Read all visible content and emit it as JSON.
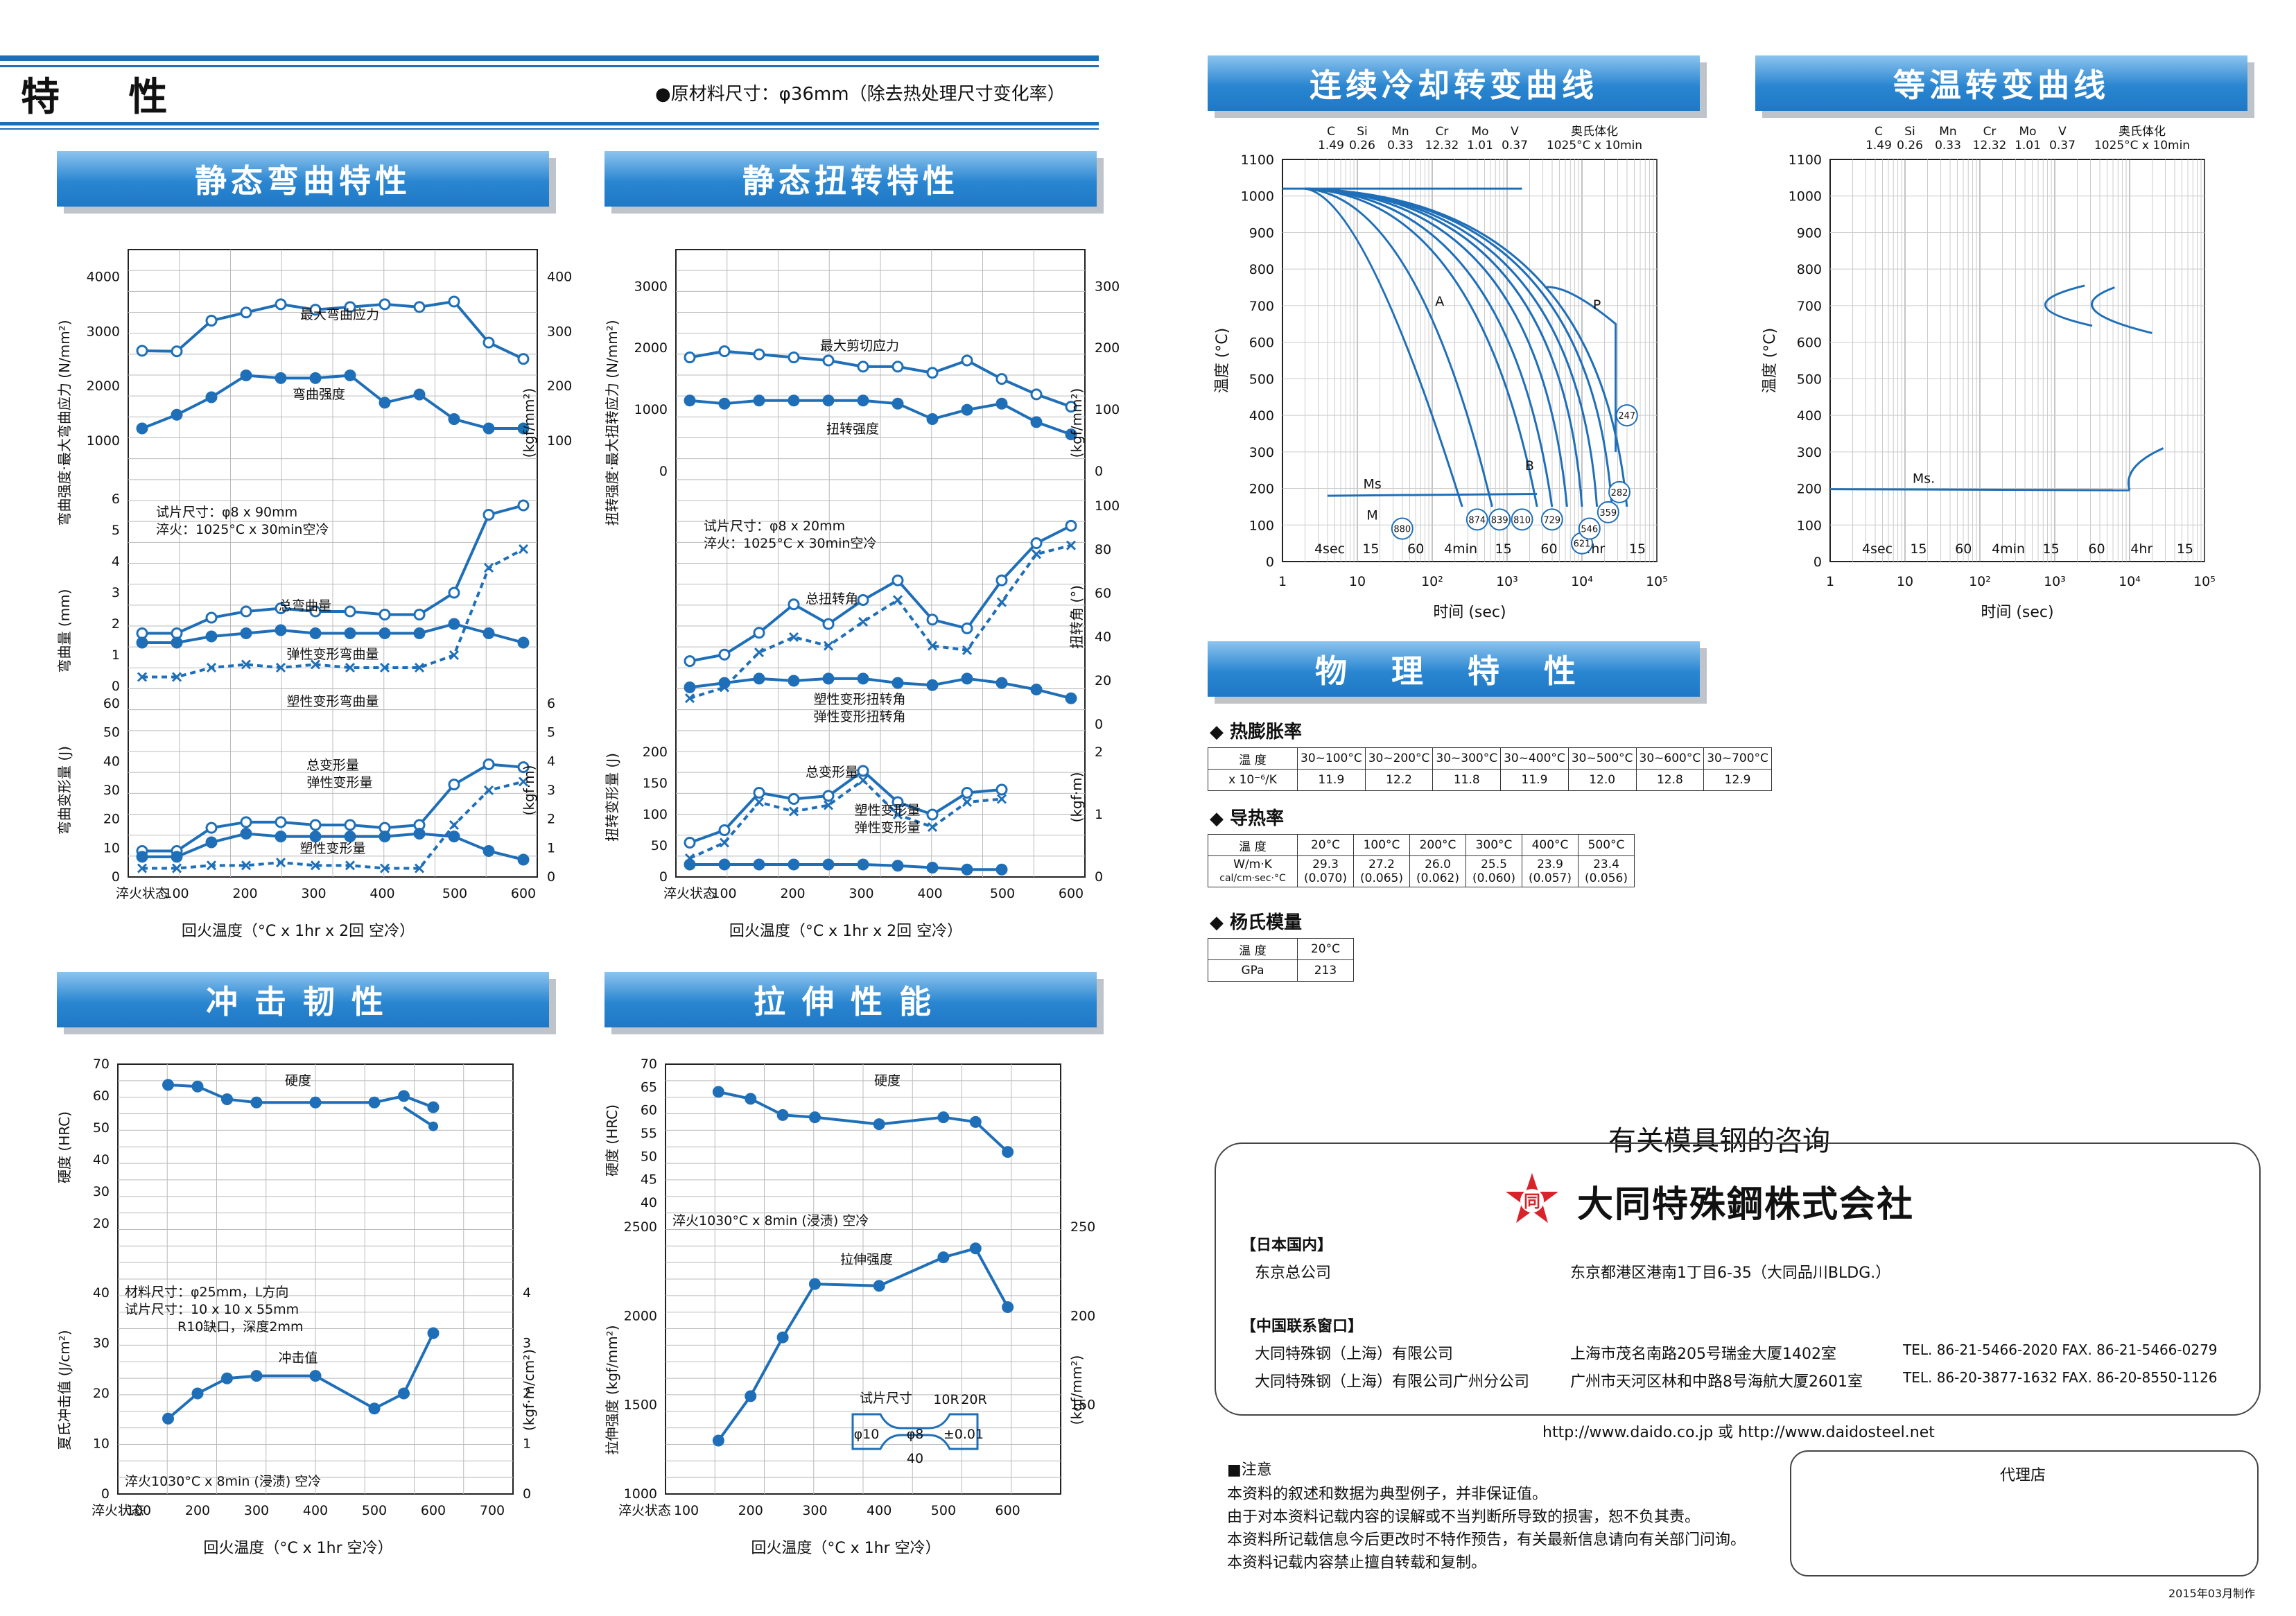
{
  "header": {
    "title": "特 性",
    "note": "●原材料尺寸：φ36mm（除去热处理尺寸变化率）"
  },
  "banners": {
    "bend": "静态弯曲特性",
    "torsion": "静态扭转特性",
    "impact": "冲击韧性",
    "tensile": "拉伸性能",
    "cct": "连续冷却转变曲线",
    "ttt": "等温转变曲线",
    "phys": "物 理 特 性"
  },
  "composition": {
    "headers": [
      "C",
      "Si",
      "Mn",
      "Cr",
      "Mo",
      "V",
      "奥氏体化"
    ],
    "values": [
      "1.49",
      "0.26",
      "0.33",
      "12.32",
      "1.01",
      "0.37",
      "1025°C x 10min"
    ]
  },
  "xtemp": {
    "labels": [
      "淬火状态",
      "100",
      "200",
      "300",
      "400",
      "500",
      "600"
    ],
    "label_ext": [
      "淬火状态",
      "100",
      "200",
      "300",
      "400",
      "500",
      "600",
      "700"
    ],
    "title_2": "回火温度（°C x 1hr x 2回 空冷）",
    "title_1": "回火温度（°C x 1hr 空冷）"
  },
  "bend": {
    "top": {
      "ylabel": "弯曲强度·最大弯曲应力 (N/mm²)",
      "ylabel_r": "(kgf/mm²)",
      "yticks": [
        "4000",
        "3000",
        "2000",
        "1000"
      ],
      "yticks_r": [
        "400",
        "300",
        "200",
        "100"
      ],
      "l1": "最大弯曲应力",
      "l2": "弯曲强度",
      "s1": [
        2650,
        2640,
        3200,
        3350,
        3500,
        3400,
        3450,
        3500,
        3450,
        3550,
        2800,
        2500
      ],
      "s2": [
        1230,
        1480,
        1800,
        2200,
        2150,
        2150,
        2200,
        1700,
        1850,
        1400,
        1230,
        1230
      ]
    },
    "mid": {
      "ylabel": "弯曲量 (mm)",
      "yticks": [
        "6",
        "5",
        "4",
        "3",
        "2",
        "1",
        "0"
      ],
      "note": "试片尺寸：φ8 x 90mm\n淬火：1025°C x 30min空冷",
      "l1": "总弯曲量",
      "l2": "弹性变形弯曲量",
      "l3": "塑性变形弯曲量",
      "s1": [
        1.7,
        1.7,
        2.2,
        2.4,
        2.5,
        2.4,
        2.4,
        2.3,
        2.3,
        3.0,
        5.5,
        5.8
      ],
      "s2": [
        1.4,
        1.4,
        1.6,
        1.7,
        1.8,
        1.7,
        1.7,
        1.7,
        1.7,
        2.0,
        1.7,
        1.4
      ],
      "s3": [
        0.3,
        0.3,
        0.6,
        0.7,
        0.6,
        0.7,
        0.6,
        0.6,
        0.6,
        1.0,
        3.8,
        4.4
      ]
    },
    "bot": {
      "ylabel": "弯曲变形量 (J)",
      "ylabel_r": "(kgf·m)",
      "yticks": [
        "60",
        "50",
        "40",
        "30",
        "20",
        "10",
        "0"
      ],
      "yticks_r": [
        "6",
        "5",
        "4",
        "3",
        "2",
        "1",
        "0"
      ],
      "l1": "总变形量",
      "l2": "弹性变形量",
      "l3": "塑性变形量",
      "s1": [
        9,
        9,
        17,
        19,
        19,
        18,
        18,
        17,
        18,
        32,
        39,
        38
      ],
      "s2": [
        7,
        7,
        12,
        15,
        14,
        14,
        14,
        14,
        15,
        14,
        9,
        6
      ],
      "s3": [
        3,
        3,
        4,
        4,
        5,
        4,
        4,
        3,
        3,
        18,
        30,
        33
      ]
    }
  },
  "torsion": {
    "top": {
      "ylabel": "扭转强度·最大扭转应力 (N/mm²)",
      "ylabel_r": "(kgf/mm²)",
      "yticks": [
        "3000",
        "2000",
        "1000",
        "0"
      ],
      "yticks_r": [
        "300",
        "200",
        "100",
        "0"
      ],
      "l1": "最大剪切应力",
      "l2": "扭转强度",
      "s1": [
        1850,
        1950,
        1900,
        1850,
        1800,
        1700,
        1700,
        1600,
        1800,
        1500,
        1250,
        1050
      ],
      "s2": [
        1150,
        1100,
        1150,
        1150,
        1150,
        1150,
        1100,
        850,
        1000,
        1100,
        800,
        600
      ]
    },
    "mid": {
      "ylabel": "扭转角 (°)",
      "yticks_r": [
        "100",
        "80",
        "60",
        "40",
        "20",
        "0"
      ],
      "note": "试片尺寸：φ8 x 20mm\n淬火：1025°C x 30min空冷",
      "l1": "总扭转角",
      "l2": "塑性变形扭转角",
      "l3": "弹性变形扭转角",
      "s1": [
        29,
        32,
        42,
        55,
        46,
        57,
        66,
        48,
        44,
        66,
        83,
        91
      ],
      "s2": [
        12,
        17,
        33,
        40,
        36,
        47,
        57,
        36,
        34,
        56,
        78,
        82
      ],
      "s3": [
        17,
        19,
        21,
        20,
        21,
        21,
        19,
        18,
        21,
        19,
        16,
        12
      ]
    },
    "bot": {
      "ylabel": "扭转变形量 (J)",
      "ylabel_r": "(kgf·m)",
      "yticks": [
        "200",
        "150",
        "100",
        "50",
        "0"
      ],
      "yticks_r": [
        "2",
        "1",
        "0"
      ],
      "l1": "总变形量",
      "l2": "塑性变形量",
      "l3": "弹性变形量",
      "s1": [
        55,
        75,
        135,
        125,
        130,
        170,
        120,
        100,
        135,
        140
      ],
      "s2": [
        30,
        55,
        120,
        105,
        115,
        155,
        100,
        80,
        120,
        125
      ],
      "s3": [
        20,
        20,
        20,
        20,
        20,
        20,
        18,
        15,
        12,
        12
      ]
    }
  },
  "impact": {
    "top": {
      "ylabel": "硬度 (HRC)",
      "yticks": [
        "70",
        "60",
        "50",
        "40",
        "30",
        "20"
      ],
      "l1": "硬度",
      "s1": [
        63.5,
        63,
        59,
        58,
        58,
        58,
        60,
        56.5,
        50.5
      ]
    },
    "bot": {
      "ylabel": "夏氏冲击值 (J/cm²)",
      "ylabel_r": "(kgf·m/cm²)",
      "yticks": [
        "40",
        "30",
        "20",
        "10",
        "0"
      ],
      "yticks_r": [
        "4",
        "3",
        "2",
        "1",
        "0"
      ],
      "note": "材料尺寸：φ25mm，L方向\n试片尺寸：10 x 10 x 55mm\n　　　　R10缺口，深度2mm",
      "l1": "冲击值",
      "note2": "淬火1030°C x 8min (浸渍) 空冷",
      "s1": [
        15,
        20,
        23,
        23.5,
        23.5,
        17,
        20,
        32
      ]
    }
  },
  "tensile": {
    "top": {
      "ylabel": "硬度 (HRC)",
      "yticks": [
        "70",
        "65",
        "60",
        "55",
        "50",
        "45",
        "40"
      ],
      "l1": "硬度",
      "s1": [
        64,
        62.5,
        59,
        58.5,
        57,
        58.5,
        57.5,
        51
      ]
    },
    "bot": {
      "ylabel": "拉伸强度 (kgf/mm²)",
      "ylabel_r": "(kgf/mm²)",
      "yticks": [
        "2500",
        "2000",
        "1500",
        "1000"
      ],
      "yticks_r": [
        "250",
        "200",
        "150"
      ],
      "note": "淬火1030°C x 8min (浸渍) 空冷",
      "l1": "拉伸强度",
      "s1": [
        1300,
        1550,
        1880,
        2180,
        2170,
        2330,
        2380,
        2050
      ],
      "spec": "试片尺寸",
      "dims": [
        "10R",
        "20R",
        "φ10",
        "φ8",
        "±0.01",
        "40"
      ]
    }
  },
  "cct": {
    "ylabel": "温度 (°C)",
    "xlabel": "时间 (sec)",
    "yticks": [
      "1100",
      "1000",
      "900",
      "800",
      "700",
      "600",
      "500",
      "400",
      "300",
      "200",
      "100",
      "0"
    ],
    "xticks": [
      "1",
      "10",
      "10²",
      "10³",
      "10⁴",
      "10⁵"
    ],
    "times": [
      "4sec",
      "15",
      "60",
      "4min",
      "15",
      "60",
      "4hr",
      "15"
    ],
    "phase": [
      "A",
      "P",
      "B",
      "Ms",
      "M"
    ],
    "hardness": [
      "880",
      "874",
      "839",
      "810",
      "729",
      "621",
      "546",
      "359",
      "282",
      "247"
    ]
  },
  "ttt": {
    "ylabel": "温度 (°C)",
    "xlabel": "时间 (sec)",
    "ms": "Ms."
  },
  "phys": {
    "thermal": {
      "title": "◆ 热膨胀率",
      "label": "温 度",
      "unit": "x 10⁻⁶/K",
      "cols": [
        "30~100°C",
        "30~200°C",
        "30~300°C",
        "30~400°C",
        "30~500°C",
        "30~600°C",
        "30~700°C"
      ],
      "vals": [
        "11.9",
        "12.2",
        "11.8",
        "11.9",
        "12.0",
        "12.8",
        "12.9"
      ]
    },
    "conduct": {
      "title": "◆ 导热率",
      "label": "温 度",
      "unit1": "W/m·K",
      "unit2": "cal/cm·sec·°C",
      "cols": [
        "20°C",
        "100°C",
        "200°C",
        "300°C",
        "400°C",
        "500°C"
      ],
      "v1": [
        "29.3",
        "27.2",
        "26.0",
        "25.5",
        "23.9",
        "23.4"
      ],
      "v2": [
        "(0.070)",
        "(0.065)",
        "(0.062)",
        "(0.060)",
        "(0.057)",
        "(0.056)"
      ]
    },
    "young": {
      "title": "◆ 杨氏模量",
      "label": "温 度",
      "unit": "GPa",
      "col": "20°C",
      "val": "213"
    }
  },
  "contact": {
    "title": "有关模具钢的咨询",
    "company": "大同特殊鋼株式会社",
    "logo_char": "同",
    "jp": "【日本国内】",
    "hq": "东京总公司",
    "hq_addr": "东京都港区港南1丁目6-35（大同品川BLDG.）",
    "cn": "【中国联系窗口】",
    "o1": "大同特殊钢（上海）有限公司",
    "o1_addr": "上海市茂名南路205号瑞金大厦1402室",
    "o1_tel": "TEL. 86-21-5466-2020  FAX. 86-21-5466-0279",
    "o2": "大同特殊钢（上海）有限公司广州分公司",
    "o2_addr": "广州市天河区林和中路8号海航大厦2601室",
    "o2_tel": "TEL. 86-20-3877-1632  FAX. 86-20-8550-1126",
    "url": "http://www.daido.co.jp 或 http://www.daidosteel.net"
  },
  "notice": {
    "title": "■注意",
    "lines": [
      "本资料的叙述和数据为典型例子，并非保证值。",
      "由于对本资料记载内容的误解或不当判断所导致的损害，恕不负其责。",
      "本资料所记载信息今后更改时不特作预告，有关最新信息请向有关部门问询。",
      "本资料记载内容禁止擅自转载和复制。"
    ]
  },
  "agent": "代理店",
  "date": "2015年03月制作"
}
